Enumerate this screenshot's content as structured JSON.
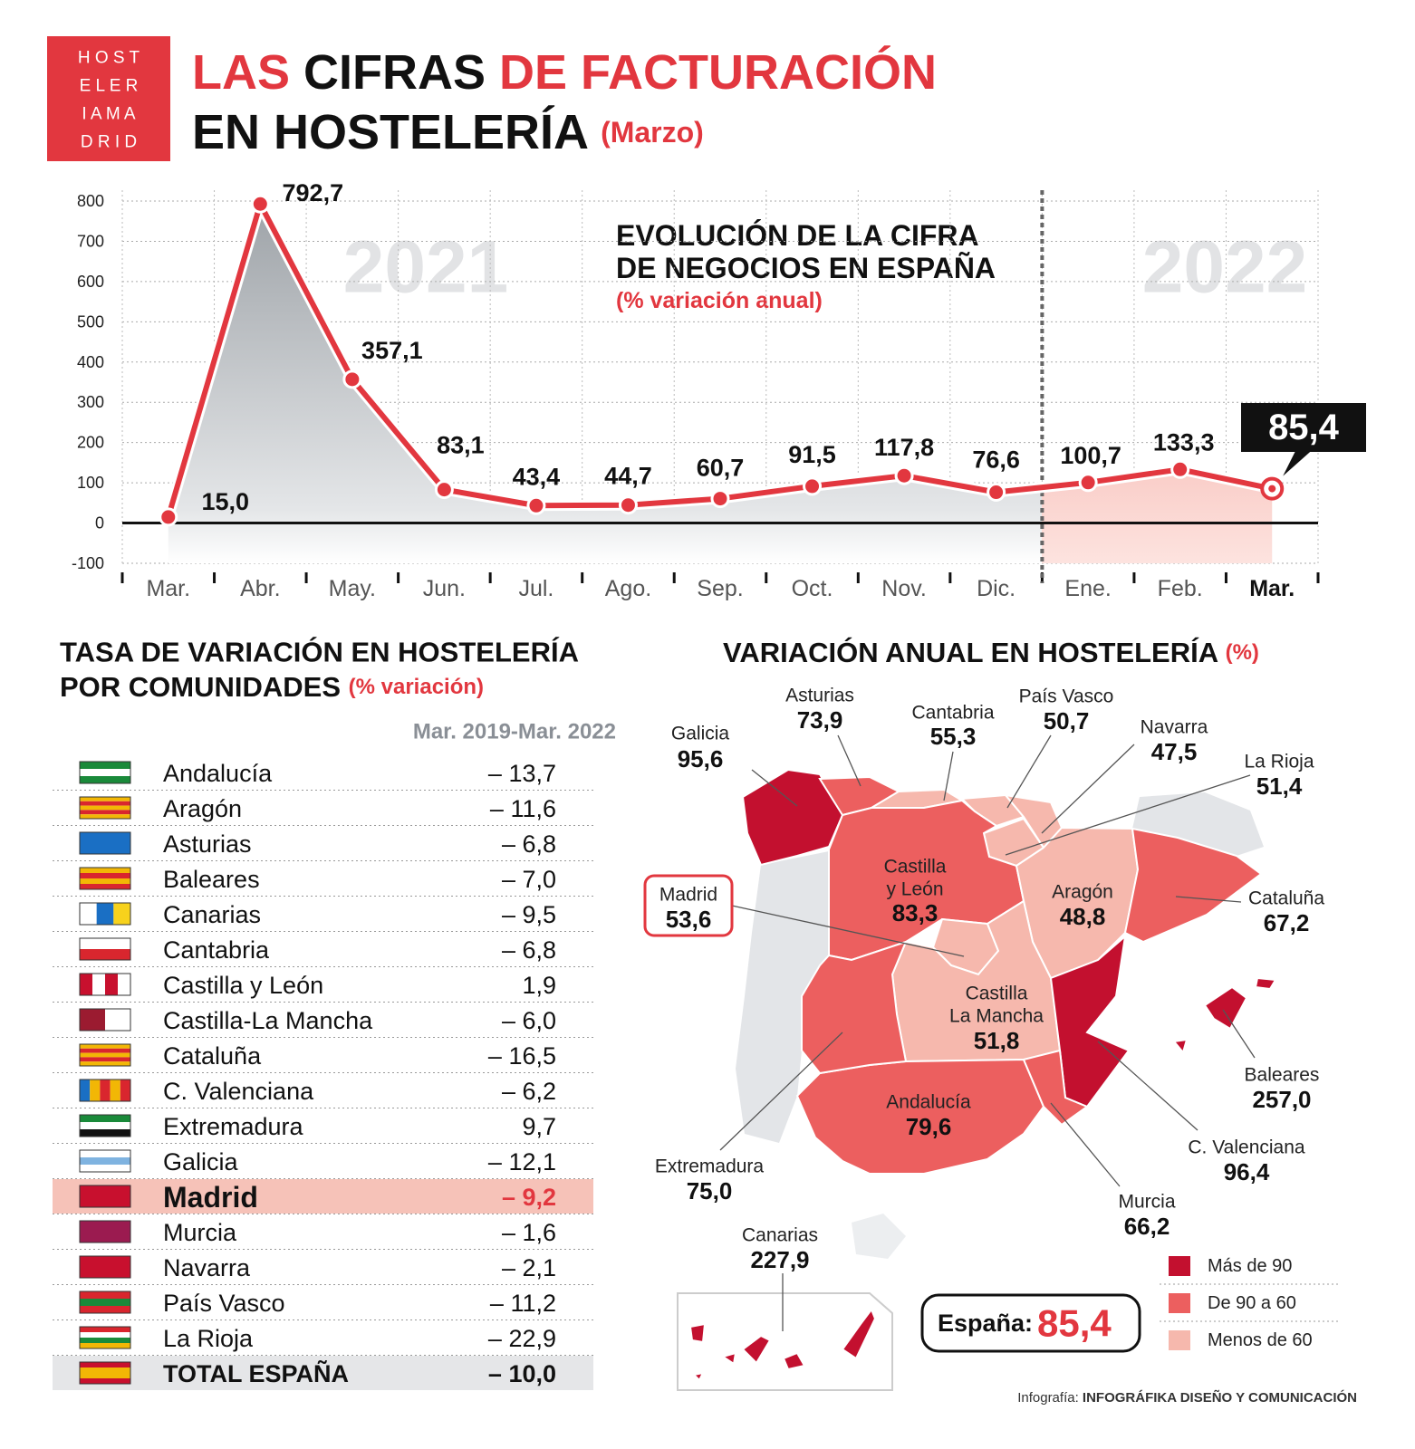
{
  "header": {
    "logo": [
      "H O S T",
      "E L E R",
      "I A M A",
      "D R I D"
    ],
    "title": [
      [
        "LAS",
        "CIFRAS",
        "DE FACTURACIÓN"
      ],
      [
        "EN HOSTELERÍA",
        "(Marzo)"
      ]
    ]
  },
  "chart_data": {
    "type": "line",
    "title": [
      "EVOLUCIÓN DE LA CIFRA",
      "DE NEGOCIOS EN ESPAÑA"
    ],
    "subtitle": "(% variación anual)",
    "annotations": [
      "2021",
      "2022"
    ],
    "categories": [
      "Mar.",
      "Abr.",
      "May.",
      "Jun.",
      "Jul.",
      "Ago.",
      "Sep.",
      "Oct.",
      "Nov.",
      "Dic.",
      "Ene.",
      "Feb.",
      "Mar."
    ],
    "values": [
      15.0,
      792.7,
      357.1,
      83.1,
      43.4,
      44.7,
      60.7,
      91.5,
      117.8,
      76.6,
      100.7,
      133.3,
      85.4
    ],
    "value_labels": [
      "15,0",
      "792,7",
      "357,1",
      "83,1",
      "43,4",
      "44,7",
      "60,7",
      "91,5",
      "117,8",
      "76,6",
      "100,7",
      "133,3",
      "85,4"
    ],
    "color": "#e2373f",
    "ylim": [
      -100,
      800
    ],
    "yticks": [
      -100,
      0,
      100,
      200,
      300,
      400,
      500,
      600,
      700,
      800
    ],
    "grid": true
  },
  "table": {
    "title": [
      "TASA DE VARIACIÓN EN HOSTELERÍA",
      "POR COMUNIDADES"
    ],
    "title_note": "(% variación)",
    "column": "Mar. 2019-Mar. 2022",
    "rows": [
      [
        "Andalucía",
        "– 13,7"
      ],
      [
        "Aragón",
        "– 11,6"
      ],
      [
        "Asturias",
        "– 6,8"
      ],
      [
        "Baleares",
        "– 7,0"
      ],
      [
        "Canarias",
        "– 9,5"
      ],
      [
        "Cantabria",
        "– 6,8"
      ],
      [
        "Castilla y León",
        "1,9"
      ],
      [
        "Castilla-La Mancha",
        "– 6,0"
      ],
      [
        "Cataluña",
        "– 16,5"
      ],
      [
        "C. Valenciana",
        "– 6,2"
      ],
      [
        "Extremadura",
        "9,7"
      ],
      [
        "Galicia",
        "– 12,1"
      ],
      [
        "Madrid",
        "– 9,2"
      ],
      [
        "Murcia",
        "– 1,6"
      ],
      [
        "Navarra",
        "– 2,1"
      ],
      [
        "País Vasco",
        "– 11,2"
      ],
      [
        "La Rioja",
        "– 22,9"
      ],
      [
        "TOTAL ESPAÑA",
        "– 10,0"
      ]
    ]
  },
  "map": {
    "title": "VARIACIÓN ANUAL EN HOSTELERÍA",
    "title_note": "(%)",
    "regions": [
      {
        "name": [
          "Galicia"
        ],
        "value": "95,6",
        "color": "#c3102f"
      },
      {
        "name": [
          "Asturias"
        ],
        "value": "73,9",
        "color": "#ec5f5f"
      },
      {
        "name": [
          "Cantabria"
        ],
        "value": "55,3",
        "color": "#f6b8ad"
      },
      {
        "name": [
          "País Vasco"
        ],
        "value": "50,7",
        "color": "#f6b8ad"
      },
      {
        "name": [
          "Navarra"
        ],
        "value": "47,5",
        "color": "#f6b8ad"
      },
      {
        "name": [
          "La Rioja"
        ],
        "value": "51,4",
        "color": "#f6b8ad"
      },
      {
        "name": [
          "Castilla",
          "y León"
        ],
        "value": "83,3",
        "color": "#ec5f5f"
      },
      {
        "name": [
          "Madrid"
        ],
        "value": "53,6",
        "color": "#f6b8ad"
      },
      {
        "name": [
          "Aragón"
        ],
        "value": "48,8",
        "color": "#f6b8ad"
      },
      {
        "name": [
          "Cataluña"
        ],
        "value": "67,2",
        "color": "#ec5f5f"
      },
      {
        "name": [
          "Castilla",
          "La Mancha"
        ],
        "value": "51,8",
        "color": "#f6b8ad"
      },
      {
        "name": [
          "Baleares"
        ],
        "value": "257,0",
        "color": "#c3102f"
      },
      {
        "name": [
          "Andalucía"
        ],
        "value": "79,6",
        "color": "#ec5f5f"
      },
      {
        "name": [
          "Extremadura"
        ],
        "value": "75,0",
        "color": "#ec5f5f"
      },
      {
        "name": [
          "C. Valenciana"
        ],
        "value": "96,4",
        "color": "#c3102f"
      },
      {
        "name": [
          "Murcia"
        ],
        "value": "66,2",
        "color": "#ec5f5f"
      },
      {
        "name": [
          "Canarias"
        ],
        "value": "227,9",
        "color": "#c3102f"
      }
    ],
    "legend": [
      {
        "label": "Más de 90",
        "color": "#c3102f"
      },
      {
        "label": "De 90 a 60",
        "color": "#ec5f5f"
      },
      {
        "label": "Menos de 60",
        "color": "#f6b8ad"
      }
    ],
    "spain": {
      "label": "España:",
      "value": "85,4"
    }
  },
  "credit": [
    "Infografía:",
    "INFOGRÁFIKA DISEÑO Y COMUNICACIÓN"
  ]
}
